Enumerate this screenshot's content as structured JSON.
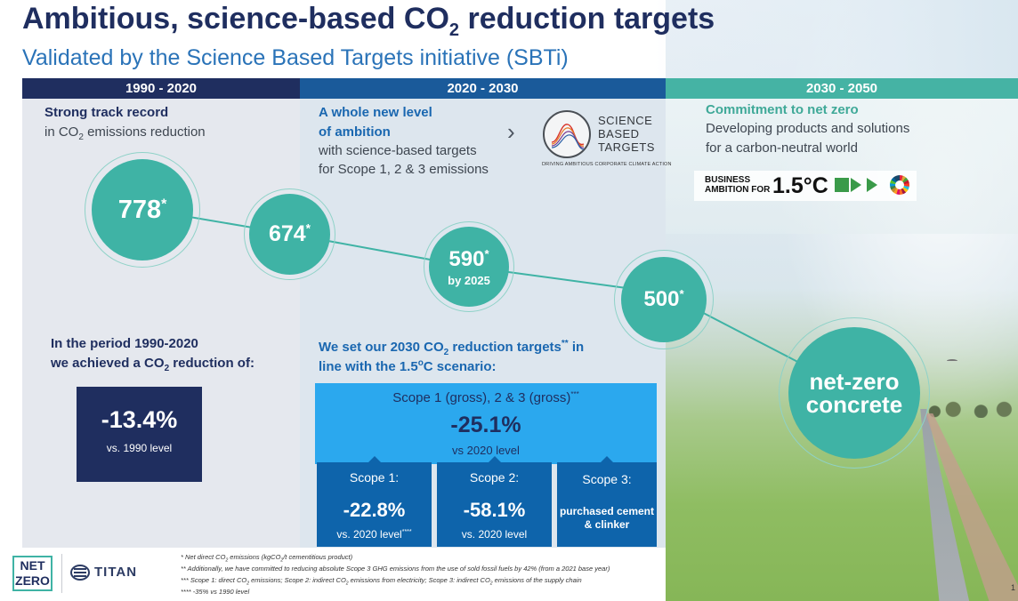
{
  "title": {
    "main": "Ambitious, science-based CO",
    "sub": "2",
    "rest": " reduction targets"
  },
  "subtitle": "Validated by the Science Based Targets initiative (SBTi)",
  "headers": [
    "1990 - 2020",
    "2020 - 2030",
    "2030 - 2050"
  ],
  "left": {
    "heading": "Strong track record",
    "sub_pre": "in CO",
    "sub_sub": "2",
    "sub_post": " emissions reduction",
    "period_line1": "In the period 1990-2020",
    "period_line2_pre": "we achieved a CO",
    "period_line2_sub": "2",
    "period_line2_post": " reduction of:",
    "reduction_value": "-13.4%",
    "reduction_sub": "vs. 1990 level"
  },
  "middle": {
    "heading1": "A whole new level",
    "heading2": "of ambition",
    "sub1": "with science-based targets",
    "sub2": "for Scope 1, 2 & 3 emissions",
    "chevron": "›",
    "target_line1_pre": "We set our 2030 CO",
    "target_line1_sub": "2",
    "target_line1_post": " reduction targets",
    "target_line1_sup": "**",
    "target_line1_end": " in",
    "target_line2_pre": "line with the 1.5",
    "target_line2_sup": "o",
    "target_line2_post": "C scenario:",
    "scope_all_label": "Scope 1 (gross), 2 & 3 (gross)",
    "scope_all_sup": "***",
    "scope_all_value": "-25.1%",
    "scope_all_sub": "vs 2020 level",
    "scopes": [
      {
        "label": "Scope 1:",
        "value": "-22.8%",
        "sub": "vs. 2020 level",
        "sup": "****"
      },
      {
        "label": "Scope 2:",
        "value": "-58.1%",
        "sub": "vs. 2020 level",
        "sup": ""
      },
      {
        "label": "Scope 3:",
        "text1": "purchased cement",
        "text2": "& clinker"
      }
    ]
  },
  "sbt_logo": {
    "line1": "SCIENCE",
    "line2": "BASED",
    "line3": "TARGETS",
    "tagline": "DRIVING AMBITIOUS CORPORATE CLIMATE ACTION"
  },
  "right": {
    "heading": "Commitment to net zero",
    "sub1": "Developing products and solutions",
    "sub2": "for a carbon-neutral world",
    "badge_small1": "BUSINESS",
    "badge_small2": "AMBITION FOR",
    "badge_big": "1.5°C"
  },
  "bubbles": [
    {
      "value": "778",
      "star": "*"
    },
    {
      "value": "674",
      "star": "*"
    },
    {
      "value": "590",
      "star": "*",
      "sub": "by 2025"
    },
    {
      "value": "500",
      "star": "*"
    },
    {
      "line1": "net-zero",
      "line2": "concrete"
    }
  ],
  "footer": {
    "netzero1": "NET",
    "netzero2": "ZERO",
    "titan": "TITAN",
    "fn1_pre": "* Net direct CO",
    "fn1_sub": "2",
    "fn1_mid": " emissions (kgCO",
    "fn1_sub2": "2",
    "fn1_post": "/t cementitious product)",
    "fn2": "** Additionally, we have committed  to reducing absolute Scope 3 GHG emissions from the use of sold fossil fuels by 42% (from a 2021 base year)",
    "fn3_pre": "*** Scope 1: direct CO",
    "fn3_sub": "2",
    "fn3_mid": " emissions; Scope 2: indirect CO",
    "fn3_sub2": "2",
    "fn3_mid2": " emissions from electricity; Scope 3: indirect CO",
    "fn3_sub3": "2",
    "fn3_post": " emissions of the supply chain",
    "fn4": "**** -35% vs 1990 level",
    "page": "1"
  },
  "colors": {
    "navy": "#1f2e5f",
    "blue": "#1a5a9a",
    "teal": "#3fb3a5",
    "light_blue": "#2ba8ee",
    "scope_blue": "#0e64ab"
  }
}
